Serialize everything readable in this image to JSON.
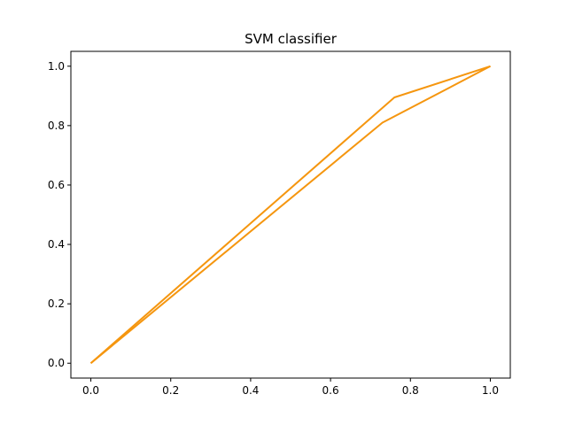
{
  "chart_data": {
    "type": "line",
    "title": "SVM classifier",
    "xlabel": "",
    "ylabel": "",
    "xlim": [
      -0.05,
      1.05
    ],
    "ylim": [
      -0.05,
      1.05
    ],
    "x_ticks": [
      "0.0",
      "0.2",
      "0.4",
      "0.6",
      "0.8",
      "1.0"
    ],
    "y_ticks": [
      "0.0",
      "0.2",
      "0.4",
      "0.6",
      "0.8",
      "1.0"
    ],
    "grid": false,
    "legend": "none",
    "series": [
      {
        "color": "#f5960f",
        "x": [
          0.0,
          0.76,
          1.0
        ],
        "y": [
          0.0,
          0.895,
          1.0
        ]
      },
      {
        "color": "#f5960f",
        "x": [
          0.0,
          0.73,
          1.0
        ],
        "y": [
          0.0,
          0.81,
          1.0
        ]
      }
    ]
  }
}
